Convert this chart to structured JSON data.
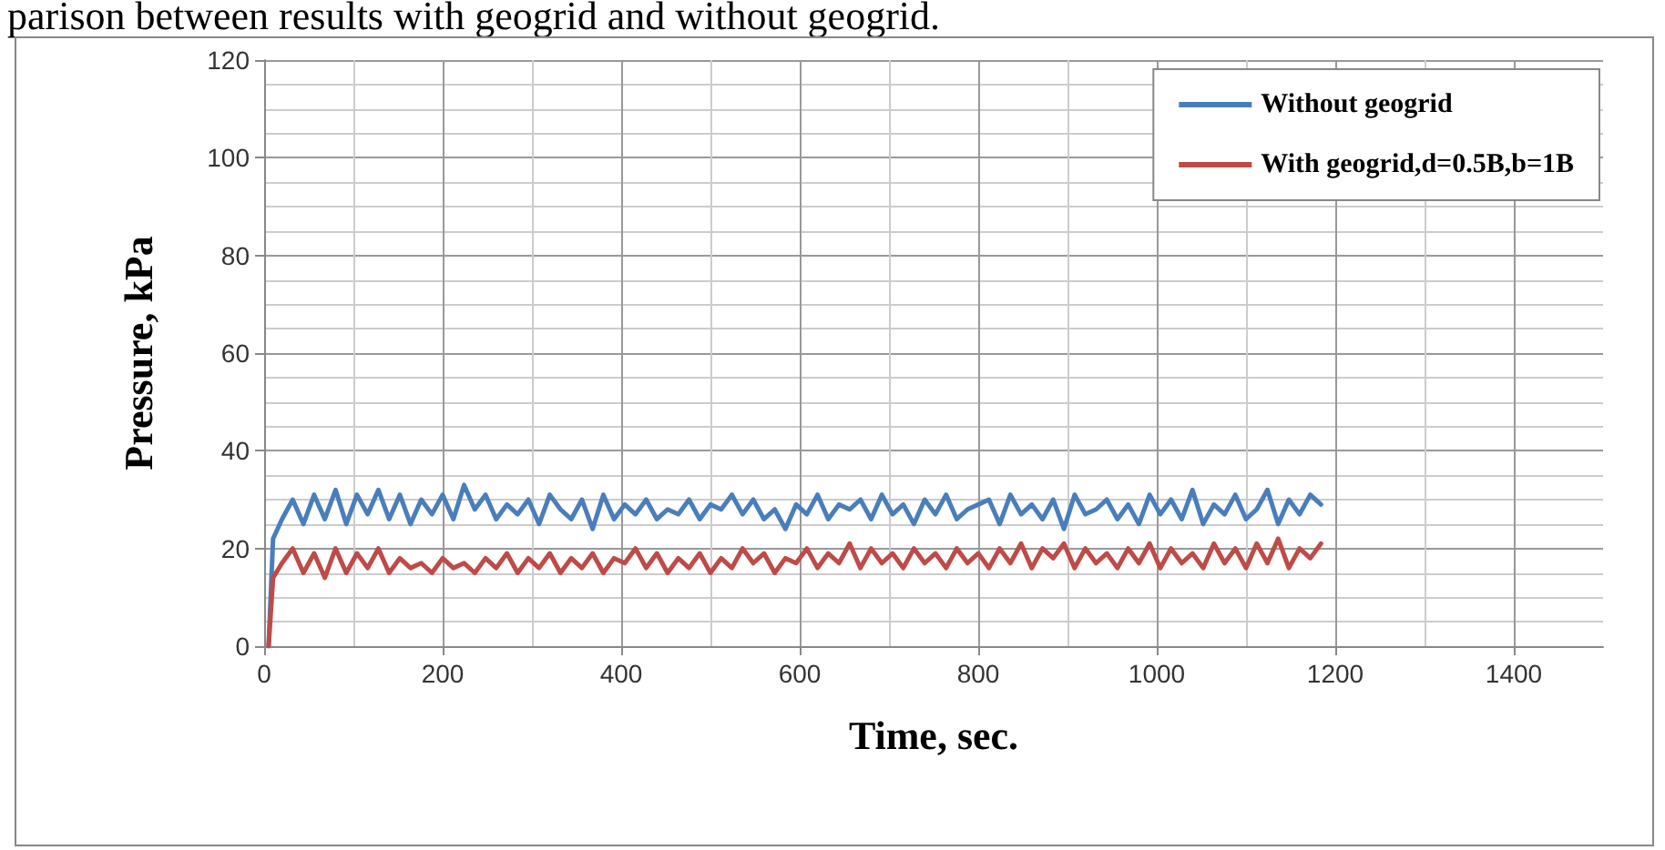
{
  "chart_data": {
    "type": "line",
    "annotations": [
      "parison between results with geogrid and without geogrid."
    ],
    "xlabel": "Time, sec.",
    "ylabel": "Pressure, kPa",
    "xlim": [
      0,
      1500
    ],
    "xticks": [
      0,
      200,
      400,
      600,
      800,
      1000,
      1200,
      1400
    ],
    "ylim": [
      0,
      120
    ],
    "yticks": [
      0,
      20,
      40,
      60,
      80,
      100,
      120
    ],
    "grid": true,
    "legend": "top right",
    "marker": "none",
    "line_style": "solid",
    "x": [
      5,
      10,
      20,
      32,
      44,
      56,
      68,
      80,
      92,
      104,
      116,
      128,
      140,
      152,
      164,
      176,
      188,
      200,
      212,
      224,
      236,
      248,
      260,
      272,
      284,
      296,
      308,
      320,
      332,
      344,
      356,
      368,
      380,
      392,
      404,
      416,
      428,
      440,
      452,
      464,
      476,
      488,
      500,
      512,
      524,
      536,
      548,
      560,
      572,
      584,
      596,
      608,
      620,
      632,
      644,
      656,
      668,
      680,
      692,
      704,
      716,
      728,
      740,
      752,
      764,
      776,
      788,
      800,
      812,
      824,
      836,
      848,
      860,
      872,
      884,
      896,
      908,
      920,
      932,
      944,
      956,
      968,
      980,
      992,
      1004,
      1016,
      1028,
      1040,
      1052,
      1064,
      1076,
      1088,
      1100,
      1112,
      1124,
      1136,
      1148,
      1160,
      1172,
      1184
    ],
    "series": [
      {
        "name": "Without geogrid",
        "color": "#4a7ebb",
        "values": [
          0,
          22,
          26,
          30,
          25,
          31,
          26,
          32,
          25,
          31,
          27,
          32,
          26,
          31,
          25,
          30,
          27,
          31,
          26,
          33,
          28,
          31,
          26,
          29,
          27,
          30,
          25,
          31,
          28,
          26,
          30,
          24,
          31,
          26,
          29,
          27,
          30,
          26,
          28,
          27,
          30,
          26,
          29,
          28,
          31,
          27,
          30,
          26,
          28,
          24,
          29,
          27,
          31,
          26,
          29,
          28,
          30,
          26,
          31,
          27,
          29,
          25,
          30,
          27,
          31,
          26,
          28,
          29,
          30,
          25,
          31,
          27,
          29,
          26,
          30,
          24,
          31,
          27,
          28,
          30,
          26,
          29,
          25,
          31,
          27,
          30,
          26,
          32,
          25,
          29,
          27,
          31,
          26,
          28,
          32,
          25,
          30,
          27,
          31,
          29
        ]
      },
      {
        "name": "With geogrid,d=0.5B,b=1B",
        "color": "#be4b48",
        "values": [
          0,
          14,
          17,
          20,
          15,
          19,
          14,
          20,
          15,
          19,
          16,
          20,
          15,
          18,
          16,
          17,
          15,
          18,
          16,
          17,
          15,
          18,
          16,
          19,
          15,
          18,
          16,
          19,
          15,
          18,
          16,
          19,
          15,
          18,
          17,
          20,
          16,
          19,
          15,
          18,
          16,
          19,
          15,
          18,
          16,
          20,
          17,
          19,
          15,
          18,
          17,
          20,
          16,
          19,
          17,
          21,
          16,
          20,
          17,
          19,
          16,
          20,
          17,
          19,
          16,
          20,
          17,
          19,
          16,
          20,
          17,
          21,
          16,
          20,
          18,
          21,
          16,
          20,
          17,
          19,
          16,
          20,
          17,
          21,
          16,
          20,
          17,
          19,
          16,
          21,
          17,
          20,
          16,
          21,
          17,
          22,
          16,
          20,
          18,
          21
        ]
      }
    ]
  }
}
